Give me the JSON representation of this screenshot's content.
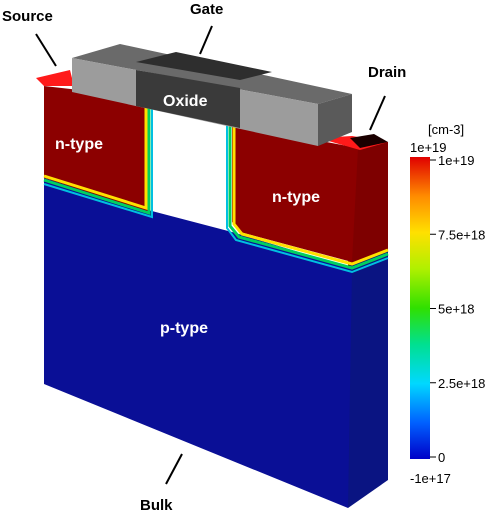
{
  "callouts": {
    "source": "Source",
    "gate": "Gate",
    "drain": "Drain",
    "bulk": "Bulk"
  },
  "regions": {
    "n_source": "n-type",
    "n_drain": "n-type",
    "p_body": "p-type",
    "oxide": "Oxide"
  },
  "colorbar": {
    "unit": "[cm-3]",
    "top_label": "1e+19",
    "bottom_label": "-1e+17",
    "ticks": [
      "1e+19",
      "7.5e+18",
      "5e+18",
      "2.5e+18",
      "0"
    ],
    "tick_fractions": [
      1.0,
      0.75,
      0.5,
      0.25,
      0.0
    ],
    "colormap": [
      "#0000c8",
      "#0080ff",
      "#00e0ff",
      "#00e080",
      "#40e000",
      "#c0f000",
      "#ffe000",
      "#ff9000",
      "#ff3000",
      "#e00000"
    ]
  },
  "colors": {
    "p_region": "#0a0f96",
    "p_region_side": "#0a1482",
    "n_region": "#8c0000",
    "n_region_top": "#ff1a1a",
    "oxide_front": "#9c9c9c",
    "oxide_top": "#6a6a6a",
    "gate_metal": "#2e2e2e"
  }
}
